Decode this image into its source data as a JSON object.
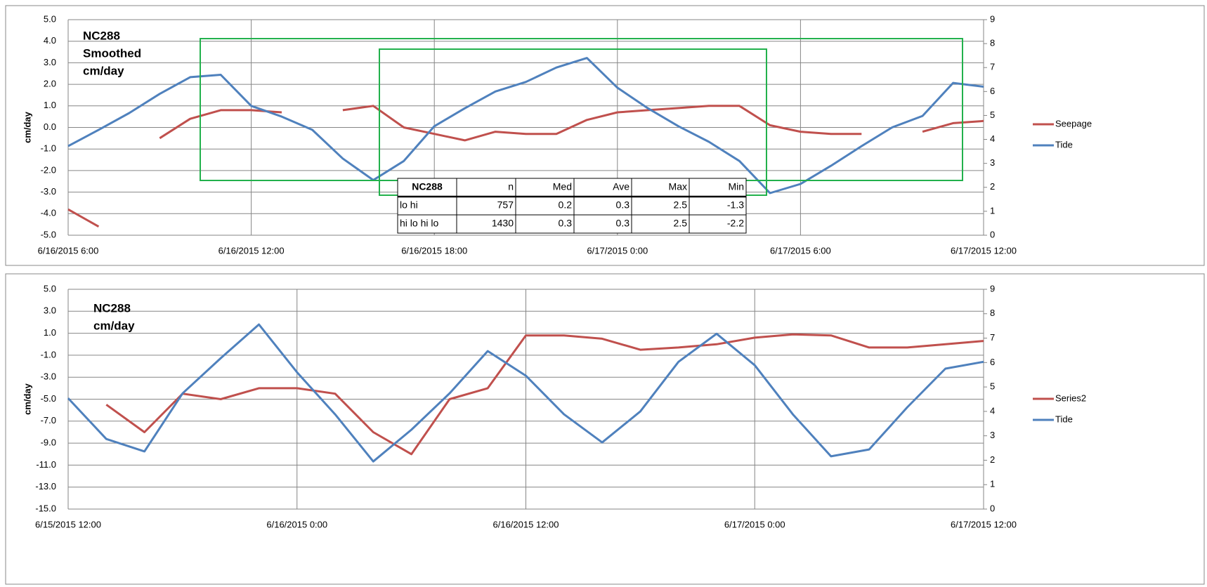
{
  "chart_data": [
    {
      "type": "line",
      "annotation": [
        "NC288",
        "Smoothed",
        "cm/day"
      ],
      "ylabel": "cm/day",
      "x": [
        "6/16/2015 6:00",
        "6/16/2015 7:00",
        "6/16/2015 8:00",
        "6/16/2015 9:00",
        "6/16/2015 10:00",
        "6/16/2015 11:00",
        "6/16/2015 12:00",
        "6/16/2015 13:00",
        "6/16/2015 14:00",
        "6/16/2015 15:00",
        "6/16/2015 16:00",
        "6/16/2015 17:00",
        "6/16/2015 18:00",
        "6/16/2015 19:00",
        "6/16/2015 20:00",
        "6/16/2015 21:00",
        "6/16/2015 22:00",
        "6/16/2015 23:00",
        "6/17/2015 0:00",
        "6/17/2015 1:00",
        "6/17/2015 2:00",
        "6/17/2015 3:00",
        "6/17/2015 4:00",
        "6/17/2015 5:00",
        "6/17/2015 6:00",
        "6/17/2015 7:00",
        "6/17/2015 8:00",
        "6/17/2015 9:00",
        "6/17/2015 10:00",
        "6/17/2015 11:00",
        "6/17/2015 12:00"
      ],
      "series": [
        {
          "name": "Seepage",
          "color": "#c0504d",
          "values": [
            -3.8,
            -4.6,
            null,
            -0.5,
            0.4,
            0.8,
            0.8,
            0.7,
            null,
            0.8,
            1.0,
            0.0,
            -0.3,
            -0.6,
            -0.2,
            -0.3,
            -0.3,
            0.35,
            0.7,
            0.8,
            0.9,
            1.0,
            1.0,
            0.1,
            -0.2,
            -0.3,
            -0.3,
            null,
            -0.2,
            0.2,
            0.3
          ]
        },
        {
          "name": "Tide",
          "color": "#4f81bd",
          "axis": "y2",
          "values": [
            3.72,
            4.4,
            5.1,
            5.9,
            6.6,
            6.7,
            5.4,
            4.95,
            4.4,
            3.2,
            2.3,
            3.1,
            4.55,
            5.3,
            6.0,
            6.4,
            7.0,
            7.4,
            6.16,
            5.3,
            4.55,
            3.9,
            3.1,
            1.76,
            2.14,
            2.9,
            3.72,
            4.5,
            4.98,
            6.36,
            6.2
          ]
        }
      ],
      "xlim": [
        "6/16/2015 6:00",
        "6/17/2015 12:00"
      ],
      "xticks": [
        "6/16/2015 6:00",
        "6/16/2015 12:00",
        "6/16/2015 18:00",
        "6/17/2015 0:00",
        "6/17/2015 6:00",
        "6/17/2015 12:00"
      ],
      "ylim": [
        -5,
        5
      ],
      "yticks": [
        {
          "value": 5,
          "label": "5.0"
        },
        {
          "value": 4,
          "label": "4.0"
        },
        {
          "value": 3,
          "label": "3.0"
        },
        {
          "value": 2,
          "label": "2.0"
        },
        {
          "value": 1,
          "label": "1.0"
        },
        {
          "value": 0,
          "label": "0.0"
        },
        {
          "value": -1,
          "label": "-1.0"
        },
        {
          "value": -2,
          "label": "-2.0"
        },
        {
          "value": -3,
          "label": "-3.0"
        },
        {
          "value": -4,
          "label": "-4.0"
        },
        {
          "value": -5,
          "label": "-5.0"
        }
      ],
      "y2lim": [
        0,
        9
      ],
      "y2ticks": [
        0,
        1,
        2,
        3,
        4,
        5,
        6,
        7,
        8,
        9
      ],
      "grid": true,
      "legend": "right",
      "table": {
        "header": [
          "NC288",
          "n",
          "Med",
          "Ave",
          "Max",
          "Min"
        ],
        "rows": [
          [
            "lo hi",
            757,
            0.2,
            0.3,
            2.5,
            -1.3
          ],
          [
            "hi lo hi lo",
            1430,
            0.3,
            0.3,
            2.5,
            -2.2
          ]
        ]
      }
    },
    {
      "type": "line",
      "annotation": [
        "NC288",
        "cm/day"
      ],
      "ylabel": "cm/day",
      "x": [
        "6/15/2015 12:00",
        "6/15/2015 14:00",
        "6/15/2015 16:00",
        "6/15/2015 18:00",
        "6/15/2015 20:00",
        "6/15/2015 22:00",
        "6/16/2015 0:00",
        "6/16/2015 2:00",
        "6/16/2015 4:00",
        "6/16/2015 6:00",
        "6/16/2015 8:00",
        "6/16/2015 10:00",
        "6/16/2015 12:00",
        "6/16/2015 14:00",
        "6/16/2015 16:00",
        "6/16/2015 18:00",
        "6/16/2015 20:00",
        "6/16/2015 22:00",
        "6/17/2015 0:00",
        "6/17/2015 2:00",
        "6/17/2015 4:00",
        "6/17/2015 6:00",
        "6/17/2015 8:00",
        "6/17/2015 10:00",
        "6/17/2015 12:00"
      ],
      "series": [
        {
          "name": "Series2",
          "color": "#c0504d",
          "values": [
            null,
            -5.5,
            -8,
            -4.5,
            -5,
            -4,
            -4,
            -4.5,
            -8,
            -10,
            -5,
            -4,
            0.8,
            0.8,
            0.5,
            -0.5,
            -0.3,
            0.0,
            0.6,
            0.9,
            0.8,
            -0.3,
            -0.3,
            0.0,
            0.3
          ]
        },
        {
          "name": "Tide",
          "color": "#4f81bd",
          "axis": "y2",
          "values": [
            4.54,
            2.87,
            2.36,
            4.74,
            6.18,
            7.56,
            5.6,
            3.88,
            1.95,
            3.25,
            4.74,
            6.47,
            5.46,
            3.88,
            2.73,
            4.0,
            6.03,
            7.18,
            5.89,
            3.88,
            2.16,
            2.44,
            4.17,
            5.75,
            6.03
          ]
        }
      ],
      "xlim": [
        "6/15/2015 12:00",
        "6/17/2015 12:00"
      ],
      "xticks": [
        "6/15/2015 12:00",
        "6/16/2015 0:00",
        "6/16/2015 12:00",
        "6/17/2015 0:00",
        "6/17/2015 12:00"
      ],
      "ylim": [
        -15,
        5
      ],
      "yticks": [
        {
          "value": 5,
          "label": "5.0"
        },
        {
          "value": 3,
          "label": "3.0"
        },
        {
          "value": 1,
          "label": "1.0"
        },
        {
          "value": -1,
          "label": "-1.0"
        },
        {
          "value": -3,
          "label": "-3.0"
        },
        {
          "value": -5,
          "label": "-5.0"
        },
        {
          "value": -7,
          "label": "-7.0"
        },
        {
          "value": -9,
          "label": "-9.0"
        },
        {
          "value": -11,
          "label": "-11.0"
        },
        {
          "value": -13,
          "label": "-13.0"
        },
        {
          "value": -15,
          "label": "-15.0"
        }
      ],
      "y2lim": [
        0,
        9
      ],
      "y2ticks": [
        0,
        1,
        2,
        3,
        4,
        5,
        6,
        7,
        8,
        9
      ],
      "grid": true,
      "legend": "right"
    }
  ]
}
